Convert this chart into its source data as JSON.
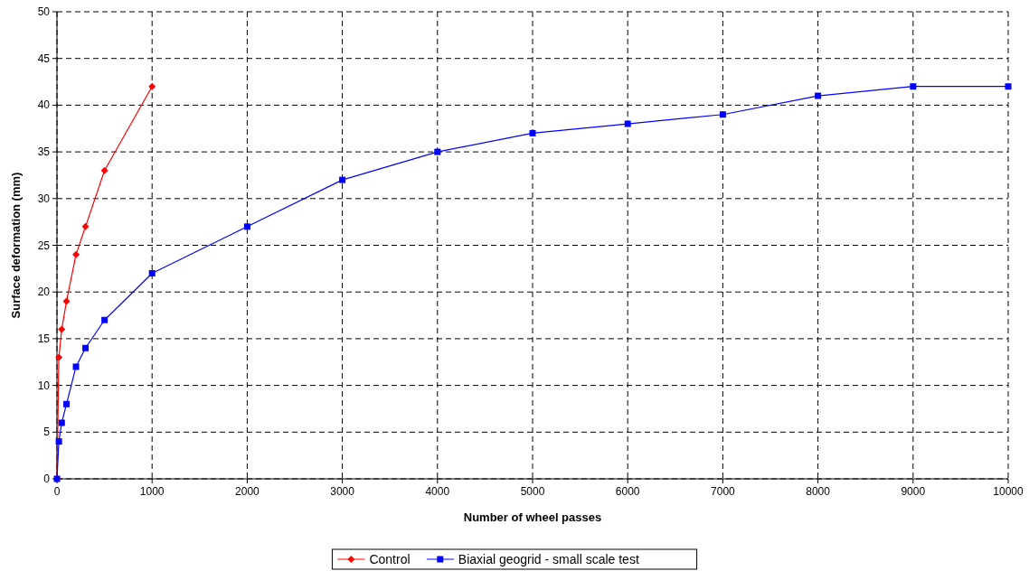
{
  "chart_data": {
    "type": "line",
    "xlabel": "Number of wheel passes",
    "ylabel": "Surface deformation (mm)",
    "xlim": [
      0,
      10000
    ],
    "xticks": [
      0,
      1000,
      2000,
      3000,
      4000,
      5000,
      6000,
      7000,
      8000,
      9000,
      10000
    ],
    "ylim": [
      0,
      50
    ],
    "yticks": [
      0,
      5,
      10,
      15,
      20,
      25,
      30,
      35,
      40,
      45,
      50
    ],
    "grid": true,
    "legend": "bottom",
    "series": [
      {
        "name": "Control",
        "color": "#ff0000",
        "marker": "diamond",
        "x": [
          0,
          20,
          50,
          100,
          200,
          300,
          500,
          1000
        ],
        "values": [
          0,
          13,
          16,
          19,
          24,
          27,
          33,
          42
        ]
      },
      {
        "name": "Biaxial geogrid - small scale test",
        "color": "#0000ff",
        "marker": "square",
        "x": [
          0,
          20,
          50,
          100,
          200,
          300,
          500,
          1000,
          2000,
          3000,
          4000,
          5000,
          6000,
          7000,
          8000,
          9000,
          10000
        ],
        "values": [
          0,
          4,
          6,
          8,
          12,
          14,
          17,
          22,
          27,
          32,
          35,
          37,
          38,
          39,
          41,
          42,
          42
        ]
      }
    ]
  }
}
